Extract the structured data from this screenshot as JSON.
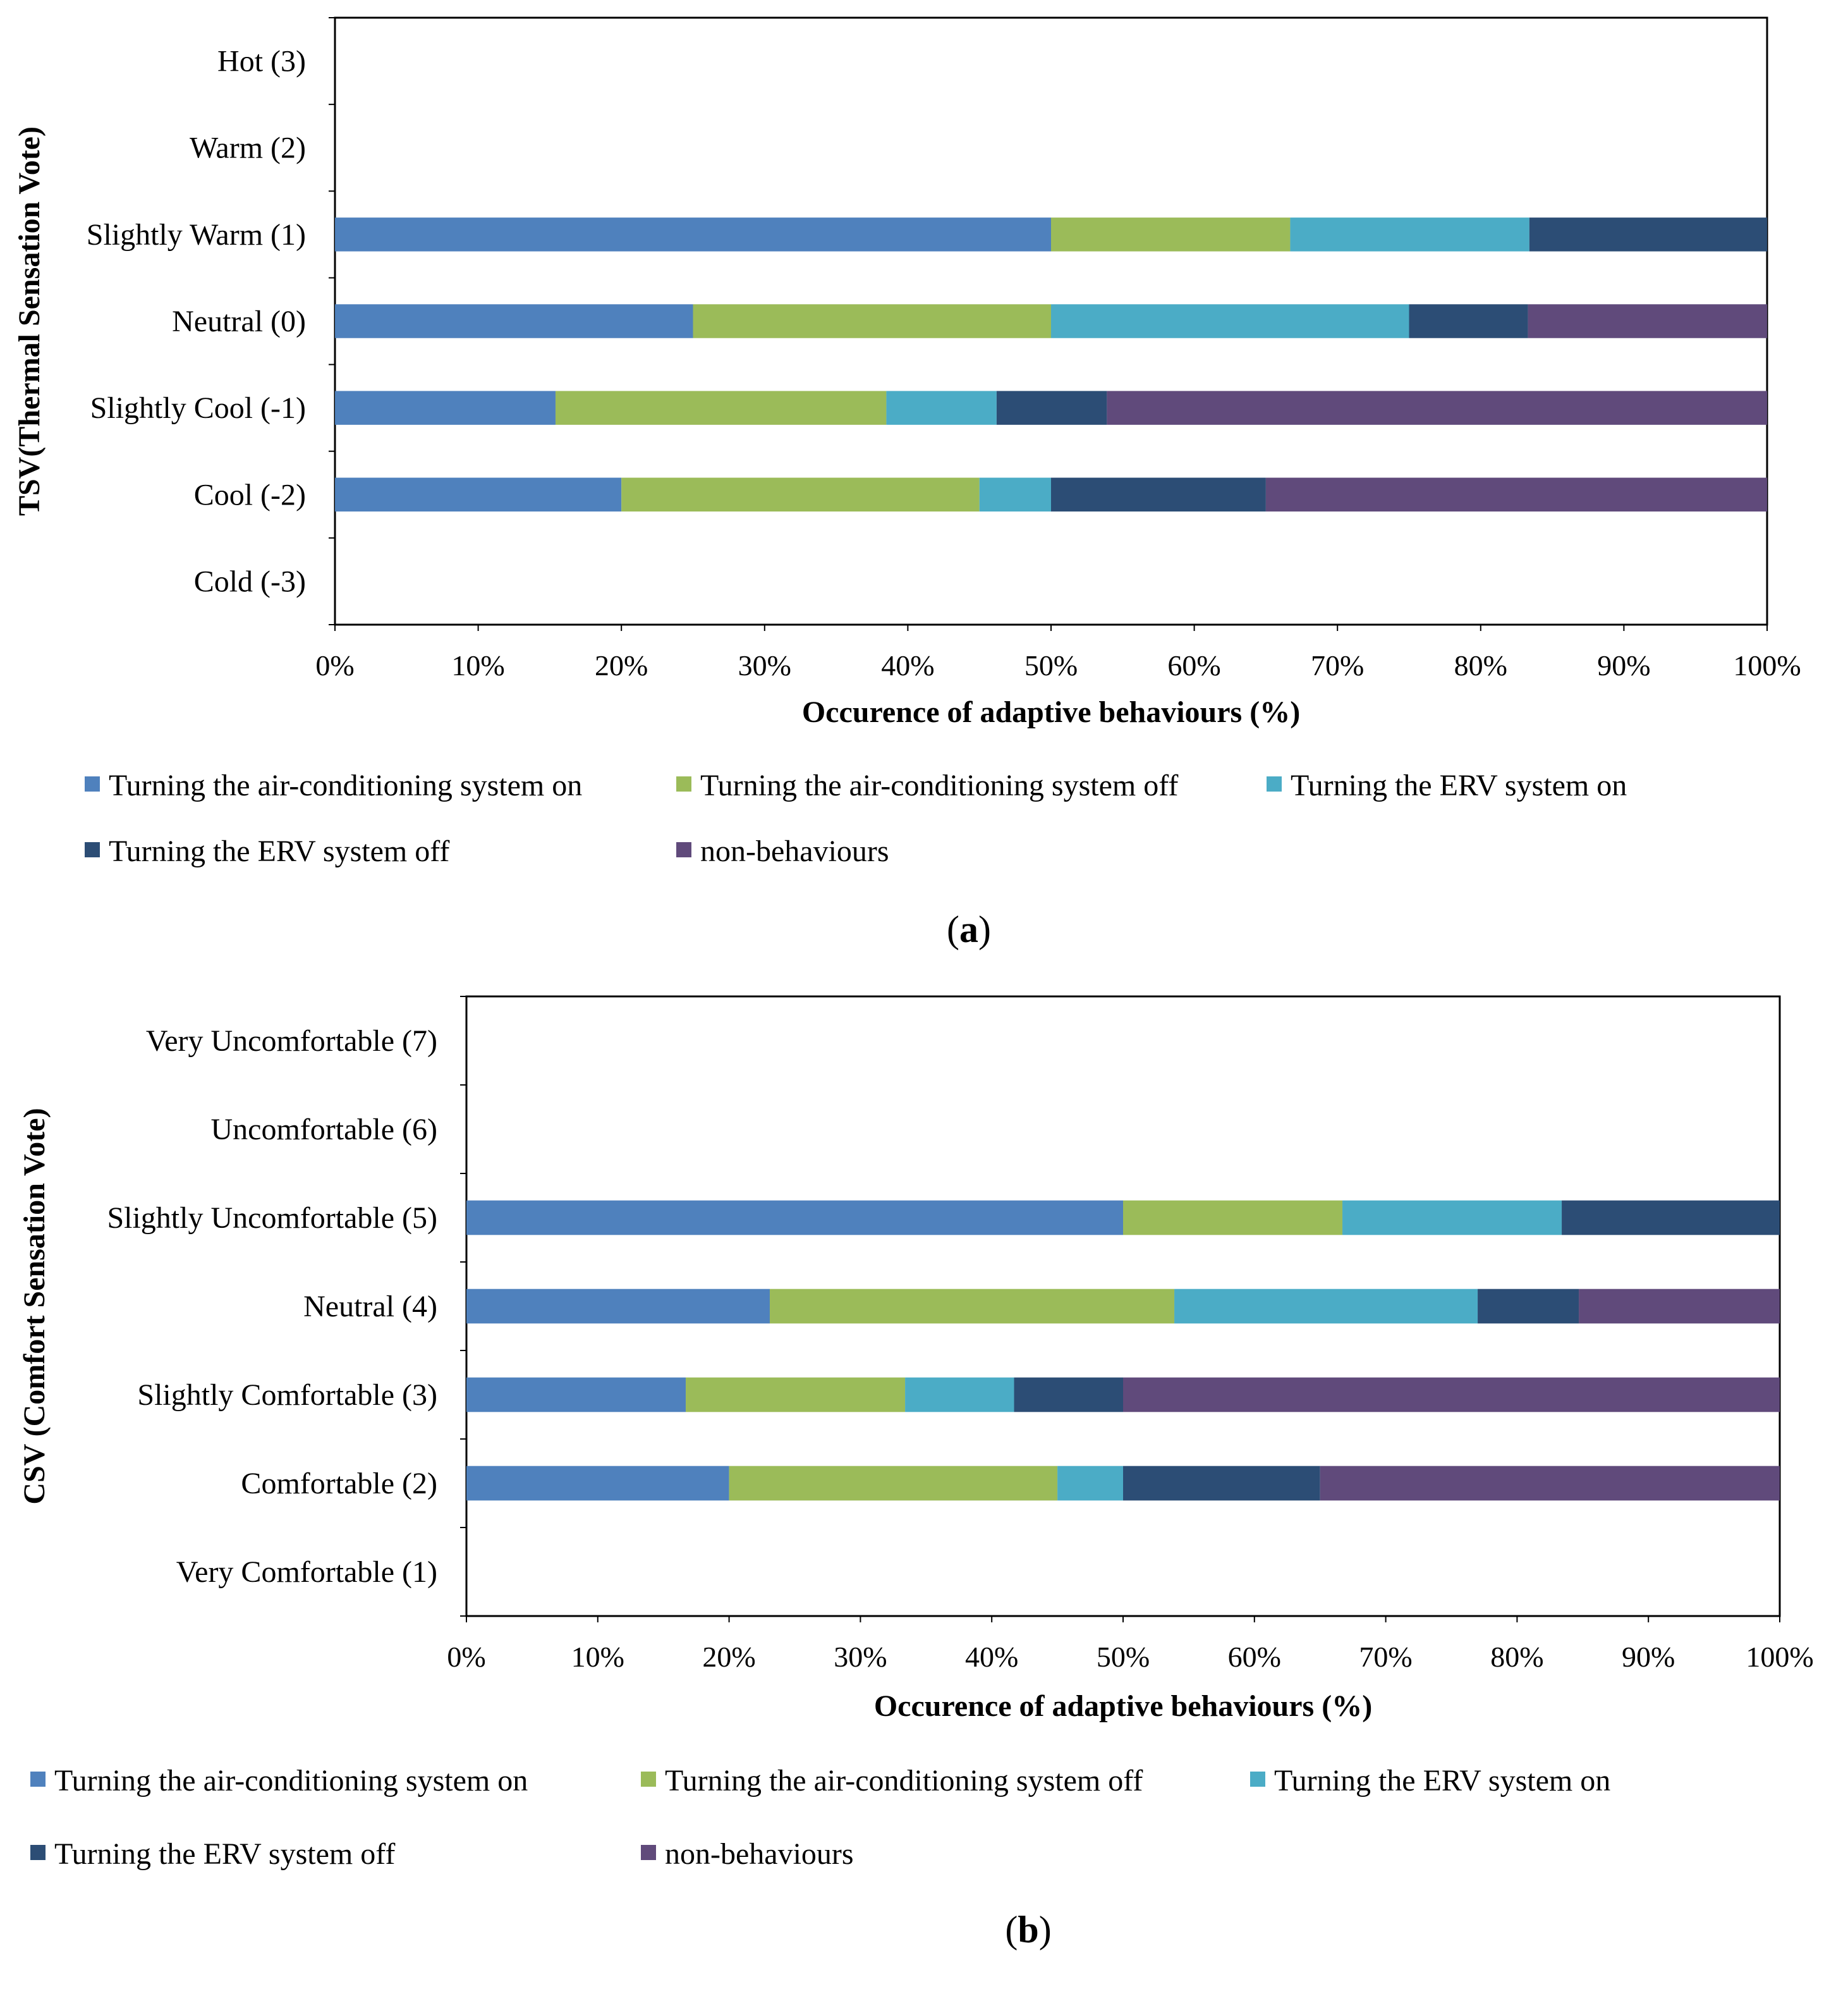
{
  "figure": {
    "panels": [
      "a",
      "b"
    ]
  },
  "chart_data": [
    {
      "panel": "a",
      "panel_label": "a",
      "type": "bar",
      "orientation": "horizontal",
      "stacked": "percent",
      "title": "",
      "xlabel": "Occurence of adaptive behaviours (%)",
      "ylabel": "TSV(Thermal Sensation Vote)",
      "xlim": [
        0,
        100
      ],
      "x_ticks": [
        "0%",
        "10%",
        "20%",
        "30%",
        "40%",
        "50%",
        "60%",
        "70%",
        "80%",
        "90%",
        "100%"
      ],
      "categories": [
        "Hot (3)",
        "Warm (2)",
        "Slightly Warm (1)",
        "Neutral (0)",
        "Slightly Cool (-1)",
        "Cool (-2)",
        "Cold (-3)"
      ],
      "series": [
        {
          "name": "Turning the air-conditioning system on",
          "color": "#4f81bd",
          "values": [
            0,
            0,
            50,
            25,
            15.4,
            20,
            0
          ]
        },
        {
          "name": "Turning the air-conditioning system off",
          "color": "#9bbb59",
          "values": [
            0,
            0,
            16.7,
            25,
            23.1,
            25,
            0
          ]
        },
        {
          "name": "Turning the ERV system on",
          "color": "#4bacc6",
          "values": [
            0,
            0,
            16.7,
            25,
            7.7,
            5,
            0
          ]
        },
        {
          "name": "Turning the ERV system off",
          "color": "#2c4d75",
          "values": [
            0,
            0,
            16.6,
            8.3,
            7.7,
            15,
            0
          ]
        },
        {
          "name": "non-behaviours",
          "color": "#604a7b",
          "values": [
            0,
            0,
            0,
            16.7,
            46.1,
            35,
            0
          ]
        }
      ],
      "legend_position": "bottom",
      "grid": false
    },
    {
      "panel": "b",
      "panel_label": "b",
      "type": "bar",
      "orientation": "horizontal",
      "stacked": "percent",
      "title": "",
      "xlabel": "Occurence of adaptive behaviours (%)",
      "ylabel": "CSV (Comfort Sensation Vote)",
      "xlim": [
        0,
        100
      ],
      "x_ticks": [
        "0%",
        "10%",
        "20%",
        "30%",
        "40%",
        "50%",
        "60%",
        "70%",
        "80%",
        "90%",
        "100%"
      ],
      "categories": [
        "Very Uncomfortable (7)",
        "Uncomfortable (6)",
        "Slightly Uncomfortable (5)",
        "Neutral (4)",
        "Slightly Comfortable (3)",
        "Comfortable (2)",
        "Very Comfortable (1)"
      ],
      "series": [
        {
          "name": "Turning the air-conditioning system on",
          "color": "#4f81bd",
          "values": [
            0,
            0,
            50,
            23.1,
            16.7,
            20,
            0
          ]
        },
        {
          "name": "Turning the air-conditioning system off",
          "color": "#9bbb59",
          "values": [
            0,
            0,
            16.7,
            30.8,
            16.7,
            25,
            0
          ]
        },
        {
          "name": "Turning the ERV system on",
          "color": "#4bacc6",
          "values": [
            0,
            0,
            16.7,
            23.1,
            8.3,
            5,
            0
          ]
        },
        {
          "name": "Turning the ERV system off",
          "color": "#2c4d75",
          "values": [
            0,
            0,
            16.6,
            7.7,
            8.3,
            15,
            0
          ]
        },
        {
          "name": "non-behaviours",
          "color": "#604a7b",
          "values": [
            0,
            0,
            0,
            15.3,
            50,
            35,
            0
          ]
        }
      ],
      "legend_position": "bottom",
      "grid": false
    }
  ]
}
